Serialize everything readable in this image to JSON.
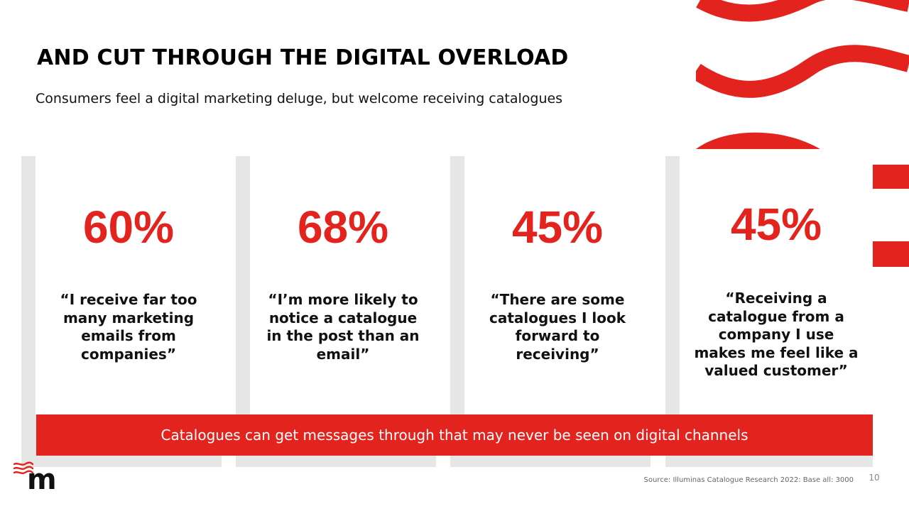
{
  "slide": {
    "title": "AND CUT THROUGH THE DIGITAL OVERLOAD",
    "subtitle": "Consumers feel a digital marketing deluge, but welcome receiving catalogues"
  },
  "stats": [
    {
      "value": "60%",
      "quote": "“I receive far too many marketing emails from companies”"
    },
    {
      "value": "68%",
      "quote": "“I’m more likely to notice a catalogue in the post than an email”"
    },
    {
      "value": "45%",
      "quote": "“There are some catalogues I look forward to receiving”"
    },
    {
      "value": "45%",
      "quote": "“Receiving a catalogue from a company I use makes me feel like a valued customer”"
    }
  ],
  "banner": {
    "text": "Catalogues can get messages through that may never be seen on digital channels"
  },
  "footer": {
    "source": "Source: Illuminas Catalogue Research 2022: Base all: 3000",
    "page_number": "10",
    "logo_letter": "m"
  },
  "colors": {
    "accent": "#e3231e",
    "card_frame": "#e6e6e6",
    "text": "#111111"
  },
  "icons": [
    "wave-decoration-icon",
    "brand-logo-icon"
  ]
}
